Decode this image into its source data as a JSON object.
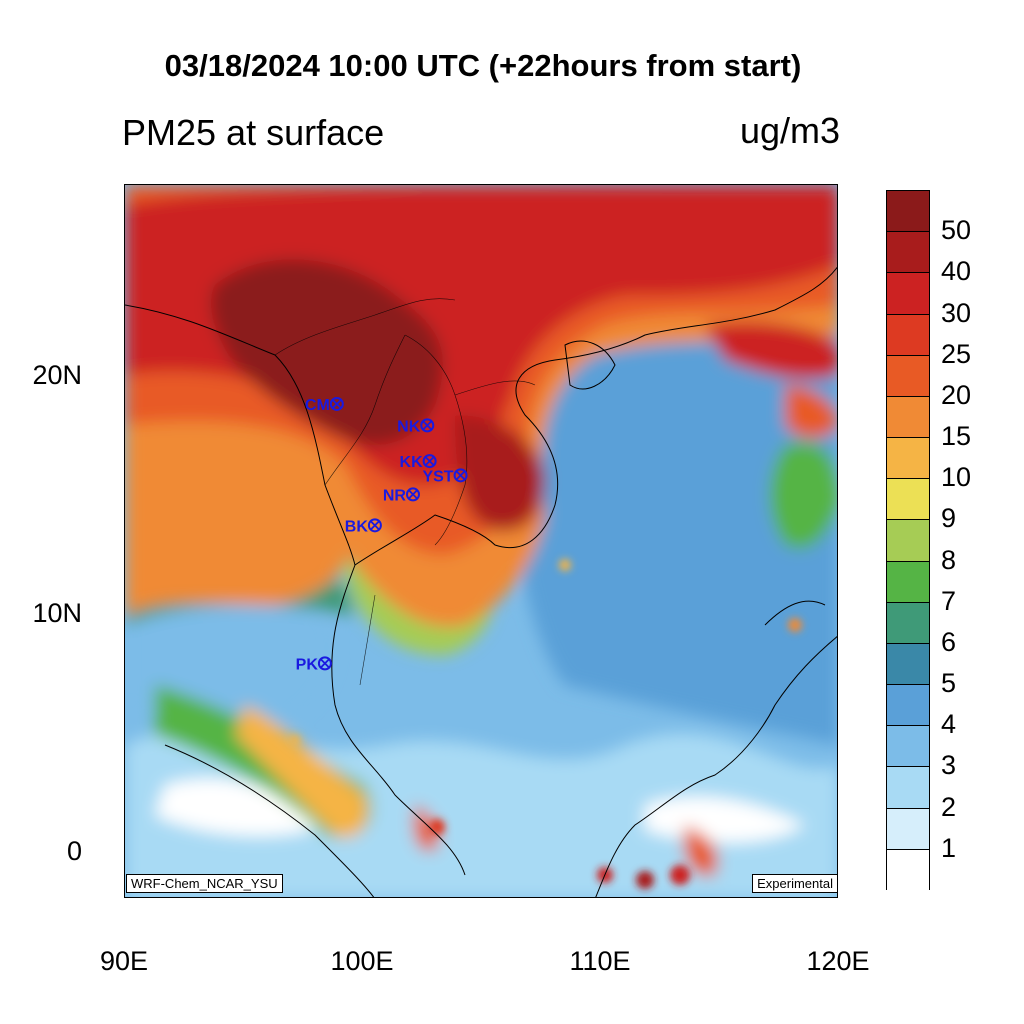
{
  "title": "03/18/2024 10:00 UTC (+22hours from start)",
  "subtitle_left": "PM25 at surface",
  "units": "ug/m3",
  "credit_left": "WRF-Chem_NCAR_YSU",
  "credit_right": "Experimental",
  "x_axis_labels": [
    "90E",
    "100E",
    "110E",
    "120E"
  ],
  "y_axis_labels": [
    "20N",
    "10N",
    "0"
  ],
  "colorbar": {
    "labels": [
      "50",
      "40",
      "30",
      "25",
      "20",
      "15",
      "10",
      "9",
      "8",
      "7",
      "6",
      "5",
      "4",
      "3",
      "2",
      "1"
    ],
    "colors": [
      "#8b1a1a",
      "#a81c1c",
      "#cc2222",
      "#dd3a22",
      "#e85a25",
      "#f08a35",
      "#f5b445",
      "#ece055",
      "#a6cc55",
      "#55b445",
      "#3f9a78",
      "#3a88a8",
      "#5aa0d8",
      "#7cbce8",
      "#a8daf4",
      "#d6eefb",
      "#ffffff"
    ]
  },
  "stations": [
    {
      "code": "CM",
      "lon": 98.9,
      "lat": 18.8
    },
    {
      "code": "NK",
      "lon": 102.7,
      "lat": 17.9
    },
    {
      "code": "KK",
      "lon": 102.8,
      "lat": 16.4
    },
    {
      "code": "YST",
      "lon": 104.1,
      "lat": 15.8
    },
    {
      "code": "NR",
      "lon": 102.1,
      "lat": 15.0
    },
    {
      "code": "BK",
      "lon": 100.5,
      "lat": 13.7
    },
    {
      "code": "PK",
      "lon": 98.4,
      "lat": 7.9
    }
  ]
}
